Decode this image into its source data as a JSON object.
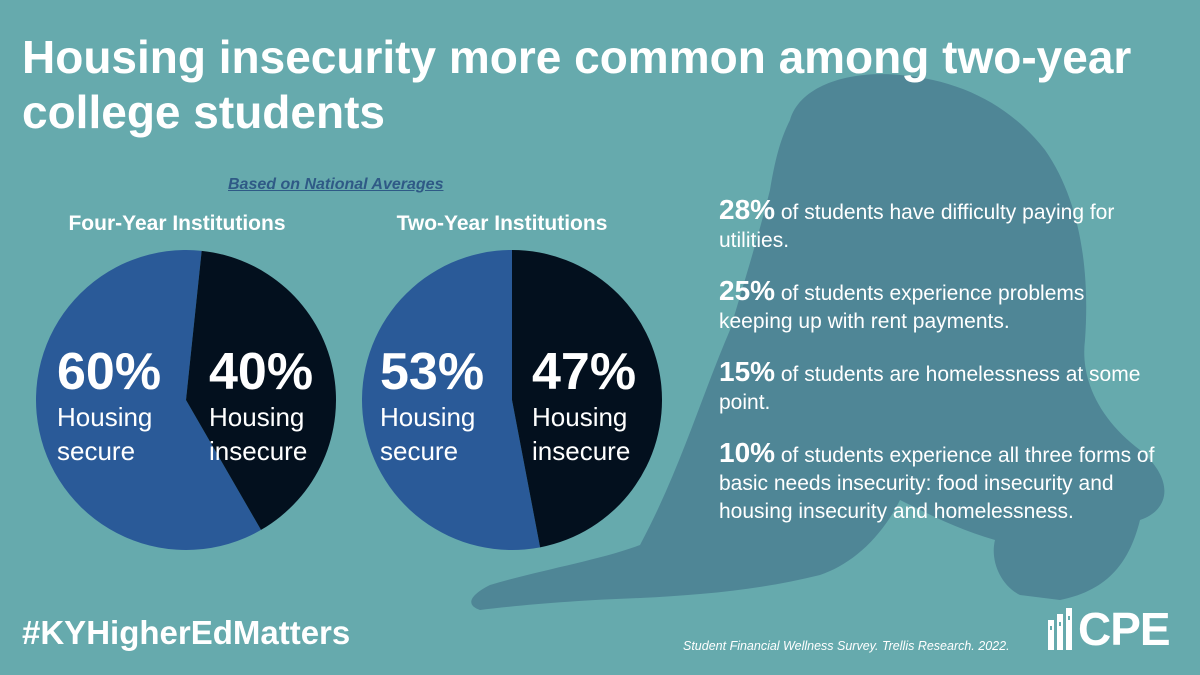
{
  "title": "Housing insecurity more common among two-year college students",
  "subtitle": "Based on National Averages",
  "colors": {
    "background": "#66aaad",
    "secure": "#2a5a98",
    "insecure": "#03101e",
    "silhouette": "#4f8696"
  },
  "chart_data": [
    {
      "type": "pie",
      "title": "Four-Year Institutions",
      "slices": [
        {
          "label": "Housing secure",
          "pct_label": "60%",
          "value": 60,
          "color": "#2a5a98"
        },
        {
          "label": "Housing insecure",
          "pct_label": "40%",
          "value": 40,
          "color": "#03101e"
        }
      ]
    },
    {
      "type": "pie",
      "title": "Two-Year Institutions",
      "slices": [
        {
          "label": "Housing secure",
          "pct_label": "53%",
          "value": 53,
          "color": "#2a5a98"
        },
        {
          "label": "Housing insecure",
          "pct_label": "47%",
          "value": 47,
          "color": "#03101e"
        }
      ]
    }
  ],
  "stats": [
    {
      "num": "28%",
      "text": " of students have difficulty paying for utilities."
    },
    {
      "num": "25%",
      "text": " of students experience problems keeping up with rent payments."
    },
    {
      "num": "15%",
      "text": " of students are homelessness at some point."
    },
    {
      "num": "10%",
      "text": " of students experience all three forms of basic needs insecurity: food insecurity and housing insecurity and homelessness."
    }
  ],
  "hashtag": "#KYHigherEdMatters",
  "source": "Student Financial Wellness Survey. Trellis Research. 2022.",
  "logo": "CPE"
}
